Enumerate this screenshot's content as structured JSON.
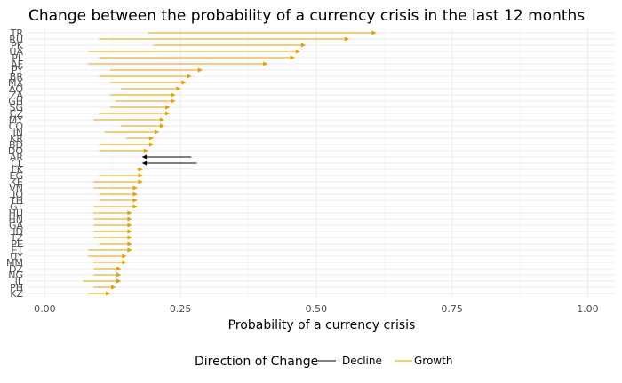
{
  "colors": {
    "Decline": "#000000",
    "Growth": "#E69F00",
    "grid": "#ebebeb"
  },
  "chart_data": {
    "type": "arrow",
    "title": "Change between the probability of a currency crisis in the last 12 months",
    "xlabel": "Probability of a currency crisis",
    "ylabel": "",
    "xlim": [
      -0.03,
      1.05
    ],
    "x_ticks": [
      0,
      0.25,
      0.5,
      0.75,
      1
    ],
    "x_tick_labels": [
      "0.00",
      "0.25",
      "0.50",
      "0.75",
      "1.00"
    ],
    "grid": true,
    "legend_title": "Direction of Change",
    "legend_entries": [
      "Decline",
      "Growth"
    ],
    "legend_position": "bottom",
    "categories": [
      "TR",
      "RU",
      "PK",
      "UA",
      "PL",
      "AF",
      "PY",
      "BR",
      "MX",
      "AO",
      "ZA",
      "GH",
      "SG",
      "CZ",
      "MY",
      "CO",
      "IN",
      "KR",
      "BD",
      "DO",
      "AR",
      "CL",
      "LK",
      "EG",
      "KE",
      "VN",
      "JO",
      "TH",
      "GT",
      "HU",
      "HN",
      "GA",
      "ID",
      "TZ",
      "PE",
      "ET",
      "UY",
      "MM",
      "DZ",
      "NG",
      "IL",
      "PH",
      "KZ"
    ],
    "start": [
      0.19,
      0.1,
      0.2,
      0.08,
      0.1,
      0.08,
      0.12,
      0.1,
      0.12,
      0.14,
      0.12,
      0.13,
      0.12,
      0.1,
      0.09,
      0.14,
      0.11,
      0.15,
      0.1,
      0.1,
      0.27,
      0.28,
      0.17,
      0.1,
      0.09,
      0.09,
      0.1,
      0.1,
      0.09,
      0.09,
      0.09,
      0.09,
      0.09,
      0.09,
      0.1,
      0.08,
      0.08,
      0.09,
      0.09,
      0.09,
      0.07,
      0.09,
      0.08
    ],
    "end": [
      0.61,
      0.56,
      0.48,
      0.47,
      0.46,
      0.41,
      0.29,
      0.27,
      0.26,
      0.25,
      0.24,
      0.24,
      0.23,
      0.23,
      0.22,
      0.22,
      0.21,
      0.2,
      0.2,
      0.19,
      0.18,
      0.18,
      0.18,
      0.18,
      0.18,
      0.17,
      0.17,
      0.17,
      0.17,
      0.16,
      0.16,
      0.16,
      0.16,
      0.16,
      0.16,
      0.16,
      0.15,
      0.15,
      0.14,
      0.14,
      0.14,
      0.13,
      0.12
    ],
    "direction": [
      "Growth",
      "Growth",
      "Growth",
      "Growth",
      "Growth",
      "Growth",
      "Growth",
      "Growth",
      "Growth",
      "Growth",
      "Growth",
      "Growth",
      "Growth",
      "Growth",
      "Growth",
      "Growth",
      "Growth",
      "Growth",
      "Growth",
      "Growth",
      "Decline",
      "Decline",
      "Growth",
      "Growth",
      "Growth",
      "Growth",
      "Growth",
      "Growth",
      "Growth",
      "Growth",
      "Growth",
      "Growth",
      "Growth",
      "Growth",
      "Growth",
      "Growth",
      "Growth",
      "Growth",
      "Growth",
      "Growth",
      "Growth",
      "Growth",
      "Growth"
    ]
  }
}
